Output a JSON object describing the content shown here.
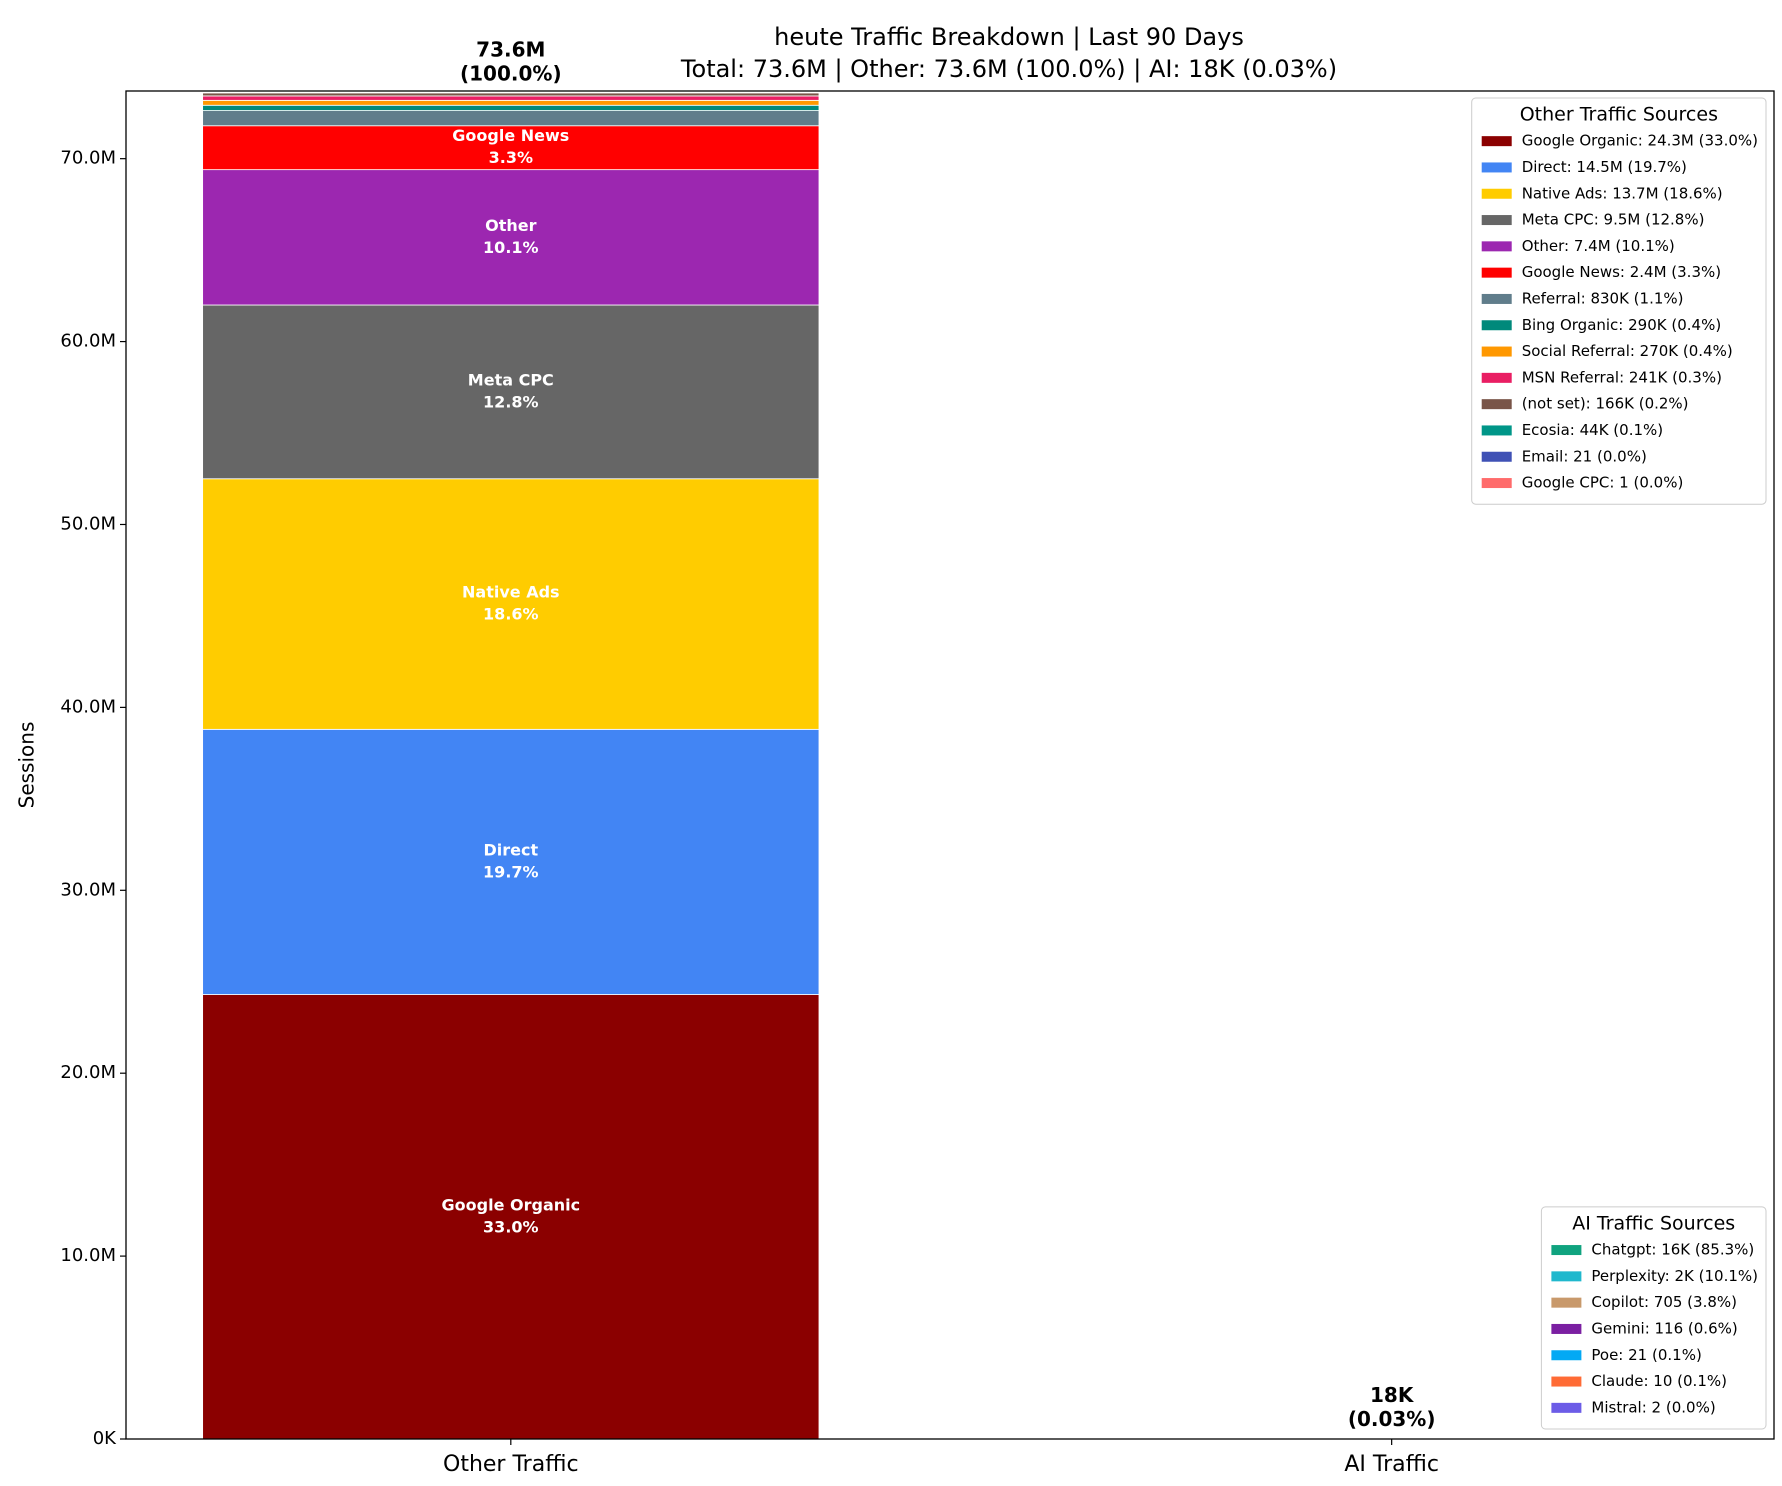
{
  "chart_data": {
    "type": "stacked_bar",
    "title": "heute Traffic Breakdown | Last 90 Days",
    "subtitle": "Total: 73.6M | Other: 73.6M (100.0%) | AI: 18K (0.03%)",
    "y_label": "Sessions",
    "categories": [
      "Other Traffic",
      "AI Traffic"
    ],
    "ylim": [
      0,
      73700000
    ],
    "yticks": [
      {
        "value": 0,
        "label": "0K"
      },
      {
        "value": 10000000,
        "label": "10.0M"
      },
      {
        "value": 20000000,
        "label": "20.0M"
      },
      {
        "value": 30000000,
        "label": "30.0M"
      },
      {
        "value": 40000000,
        "label": "40.0M"
      },
      {
        "value": 50000000,
        "label": "50.0M"
      },
      {
        "value": 60000000,
        "label": "60.0M"
      },
      {
        "value": 70000000,
        "label": "70.0M"
      }
    ],
    "grid": false,
    "totals": {
      "values": [
        73600000,
        18000
      ],
      "value_labels": [
        "73.6M",
        "18K"
      ],
      "shares": [
        "(100.0%)",
        "(0.03%)"
      ]
    },
    "legends": [
      {
        "title": "Other Traffic Sources",
        "loc": "upper right"
      },
      {
        "title": "AI Traffic Sources",
        "loc": "lower right"
      }
    ],
    "series": [
      {
        "name": "Google Organic",
        "legend": 0,
        "label": "Google Organic: 24.3M (33.0%)",
        "bar_label": "33.0%",
        "color": "#8b0000",
        "values": [
          24300000,
          null
        ]
      },
      {
        "name": "Direct",
        "legend": 0,
        "label": "Direct: 14.5M (19.7%)",
        "bar_label": "19.7%",
        "color": "#4285f4",
        "values": [
          14500000,
          null
        ]
      },
      {
        "name": "Native Ads",
        "legend": 0,
        "label": "Native Ads: 13.7M (18.6%)",
        "bar_label": "18.6%",
        "color": "#ffcc00",
        "values": [
          13700000,
          null
        ]
      },
      {
        "name": "Meta CPC",
        "legend": 0,
        "label": "Meta CPC: 9.5M (12.8%)",
        "bar_label": "12.8%",
        "color": "#666666",
        "values": [
          9500000,
          null
        ]
      },
      {
        "name": "Other",
        "legend": 0,
        "label": "Other: 7.4M (10.1%)",
        "bar_label": "10.1%",
        "color": "#9c27b0",
        "values": [
          7400000,
          null
        ]
      },
      {
        "name": "Google News",
        "legend": 0,
        "label": "Google News: 2.4M (3.3%)",
        "bar_label": "3.3%",
        "color": "#ff0000",
        "values": [
          2400000,
          null
        ]
      },
      {
        "name": "Referral",
        "legend": 0,
        "label": "Referral: 830K (1.1%)",
        "color": "#607d8b",
        "values": [
          830000,
          null
        ]
      },
      {
        "name": "Bing Organic",
        "legend": 0,
        "label": "Bing Organic: 290K (0.4%)",
        "color": "#00897b",
        "values": [
          290000,
          null
        ]
      },
      {
        "name": "Social Referral",
        "legend": 0,
        "label": "Social Referral: 270K (0.4%)",
        "color": "#ff9800",
        "values": [
          270000,
          null
        ]
      },
      {
        "name": "MSN Referral",
        "legend": 0,
        "label": "MSN Referral: 241K (0.3%)",
        "color": "#e91e63",
        "values": [
          241000,
          null
        ]
      },
      {
        "name": "(not set)",
        "legend": 0,
        "label": "(not set): 166K (0.2%)",
        "color": "#795548",
        "values": [
          166000,
          null
        ]
      },
      {
        "name": "Ecosia",
        "legend": 0,
        "label": "Ecosia: 44K (0.1%)",
        "color": "#009688",
        "values": [
          44000,
          null
        ]
      },
      {
        "name": "Email",
        "legend": 0,
        "label": "Email: 21 (0.0%)",
        "color": "#3f51b5",
        "values": [
          21,
          null
        ]
      },
      {
        "name": "Google CPC",
        "legend": 0,
        "label": "Google CPC: 1 (0.0%)",
        "color": "#ff6b6b",
        "values": [
          1,
          null
        ]
      },
      {
        "name": "Chatgpt",
        "legend": 1,
        "label": "Chatgpt: 16K (85.3%)",
        "color": "#10a37f",
        "values": [
          null,
          16000
        ]
      },
      {
        "name": "Perplexity",
        "legend": 1,
        "label": "Perplexity: 2K (10.1%)",
        "color": "#20b8cd",
        "values": [
          null,
          2000
        ]
      },
      {
        "name": "Copilot",
        "legend": 1,
        "label": "Copilot: 705 (3.8%)",
        "color": "#c8996b",
        "values": [
          null,
          705
        ]
      },
      {
        "name": "Gemini",
        "legend": 1,
        "label": "Gemini: 116 (0.6%)",
        "color": "#7b1fa2",
        "values": [
          null,
          116
        ]
      },
      {
        "name": "Poe",
        "legend": 1,
        "label": "Poe: 21 (0.1%)",
        "color": "#03a9f4",
        "values": [
          null,
          21
        ]
      },
      {
        "name": "Claude",
        "legend": 1,
        "label": "Claude: 10 (0.1%)",
        "color": "#ff6b35",
        "values": [
          null,
          10
        ]
      },
      {
        "name": "Mistral",
        "legend": 1,
        "label": "Mistral: 2 (0.0%)",
        "color": "#6c5ce7",
        "values": [
          null,
          2
        ]
      }
    ]
  }
}
